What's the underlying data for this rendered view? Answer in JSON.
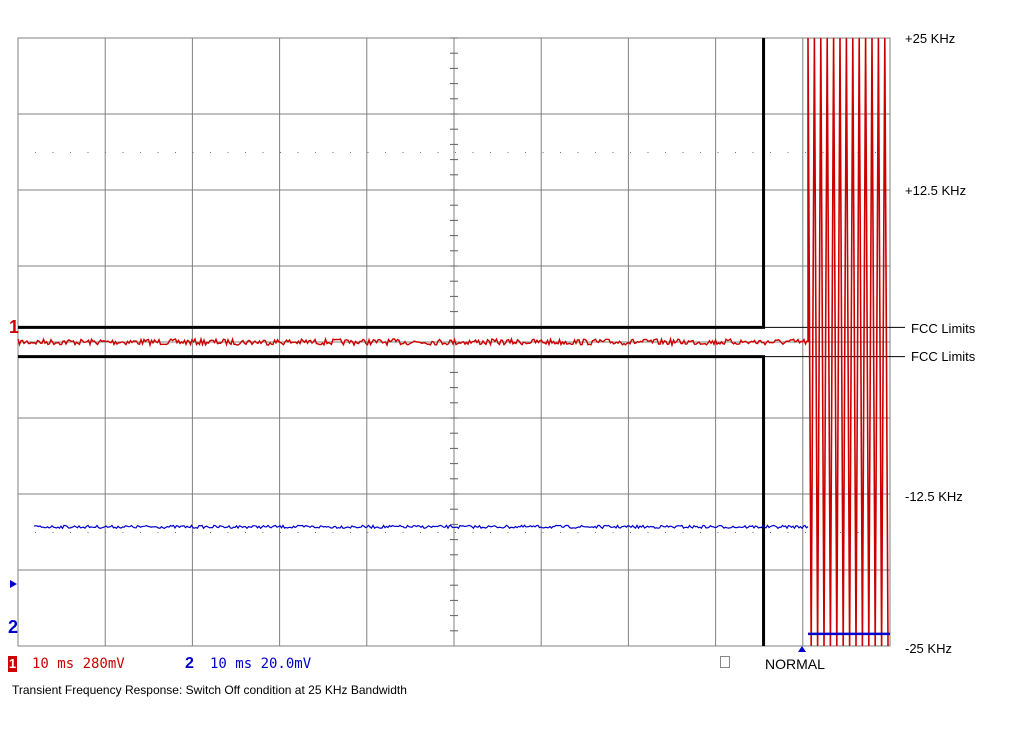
{
  "chart_data": {
    "type": "line",
    "title": "",
    "caption": "Transient Frequency Response: Switch Off condition at 25 KHz Bandwidth",
    "y_axis_labels": [
      "+25 KHz",
      "+12.5 KHz",
      "-12.5 KHz",
      "-25 KHz"
    ],
    "y_axis_values": [
      25,
      12.5,
      -12.5,
      -25
    ],
    "ylim": [
      -25,
      25
    ],
    "grid": true,
    "divisions": {
      "x": 10,
      "y": 8
    },
    "limit_lines": [
      {
        "label": "FCC Limits",
        "value": 1.2
      },
      {
        "label": "FCC Limits",
        "value": -1.2
      }
    ],
    "switch_off_fraction": 0.855,
    "series": [
      {
        "name": "1",
        "color": "#cc0000",
        "timebase": "10 ms",
        "scale": "280mV",
        "steady_value": 0.0,
        "post_switch": "oscillation between -25 and +25 KHz"
      },
      {
        "name": "2",
        "color": "#0000cc",
        "timebase": "10 ms",
        "scale": "20.0mV",
        "steady_value": -15.2,
        "post_switch_value": -24.0
      }
    ]
  },
  "channels": {
    "ch1_marker": "1",
    "ch2_marker": "2",
    "ch1_info": "10 ms 280mV",
    "ch2_info": "10 ms 20.0mV",
    "mode": "NORMAL"
  }
}
